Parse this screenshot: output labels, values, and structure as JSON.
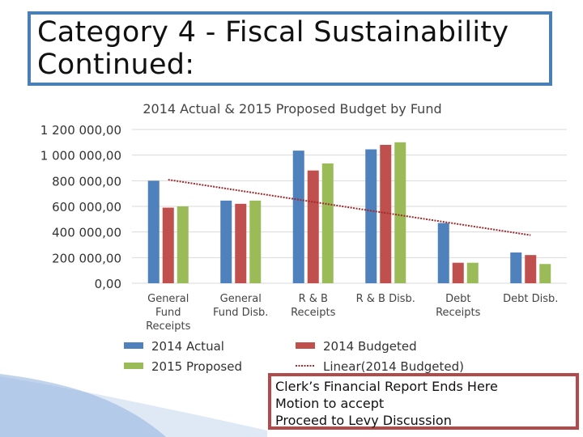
{
  "slide": {
    "title_line1": "Category 4 -  Fiscal Sustainability",
    "title_line2": "Continued:"
  },
  "note": {
    "lines": [
      "Clerk’s Financial Report Ends Here",
      "Motion to accept",
      "Proceed to Levy Discussion"
    ]
  },
  "colors": {
    "actual_2014": "#4f81bd",
    "budgeted_2014": "#c0504d",
    "proposed_2015": "#9bbb59",
    "trend": "#a0292b",
    "title_border": "#4a7fb5",
    "note_border": "#b14b4b"
  },
  "chart_data": {
    "type": "bar",
    "title": "2014 Actual & 2015 Proposed Budget by Fund",
    "categories": [
      [
        "General",
        "Fund",
        "Receipts"
      ],
      [
        "General",
        "Fund Disb."
      ],
      [
        "R & B",
        "Receipts"
      ],
      [
        "R & B Disb."
      ],
      [
        "Debt",
        "Receipts"
      ],
      [
        "Debt Disb."
      ]
    ],
    "series": [
      {
        "name": "2014 Actual",
        "values": [
          800000,
          645000,
          1035000,
          1045000,
          470000,
          240000
        ]
      },
      {
        "name": "2014 Budgeted",
        "values": [
          590000,
          620000,
          880000,
          1080000,
          160000,
          220000
        ]
      },
      {
        "name": "2015 Proposed",
        "values": [
          600000,
          645000,
          935000,
          1100000,
          160000,
          150000
        ]
      }
    ],
    "trendline": {
      "name": "Linear(2014 Budgeted)",
      "of_series": "2014 Budgeted"
    },
    "ylim": [
      0,
      1200000
    ],
    "yticks": [
      0,
      200000,
      400000,
      600000,
      800000,
      1000000,
      1200000
    ],
    "ytick_labels": [
      "0,00",
      "200 000,00",
      "400 000,00",
      "600 000,00",
      "800 000,00",
      "1 000 000,00",
      "1 200 000,00"
    ],
    "grid": true,
    "legend": "bottom"
  }
}
